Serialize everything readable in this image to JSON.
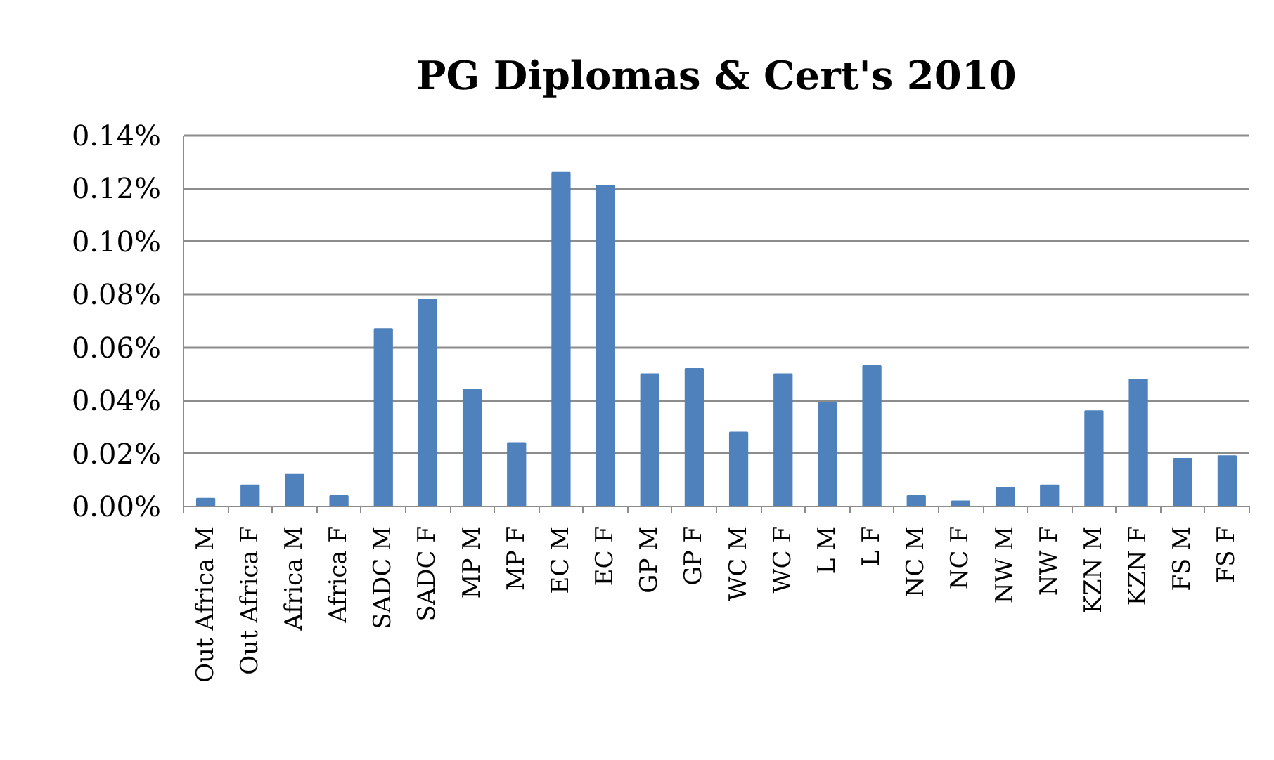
{
  "chart_data": {
    "type": "bar",
    "title": "PG Diplomas & Cert's 2010",
    "categories": [
      "Out Africa M",
      "Out Africa F",
      "Africa M",
      "Africa F",
      "SADC M",
      "SADC F",
      "MP M",
      "MP F",
      "EC M",
      "EC F",
      "GP M",
      "GP F",
      "WC M",
      "WC F",
      "L M",
      "L F",
      "NC M",
      "NC F",
      "NW M",
      "NW F",
      "KZN M",
      "KZN F",
      "FS M",
      "FS F"
    ],
    "values": [
      0.003,
      0.008,
      0.012,
      0.004,
      0.067,
      0.078,
      0.044,
      0.024,
      0.126,
      0.121,
      0.05,
      0.052,
      0.028,
      0.05,
      0.039,
      0.053,
      0.004,
      0.002,
      0.007,
      0.008,
      0.036,
      0.048,
      0.018,
      0.019
    ],
    "color": "#4f81bd",
    "ylim": [
      0,
      0.14
    ],
    "yticks": [
      {
        "value": 0,
        "label": "0.00%"
      },
      {
        "value": 0.02,
        "label": "0.02%"
      },
      {
        "value": 0.04,
        "label": "0.04%"
      },
      {
        "value": 0.06,
        "label": "0.06%"
      },
      {
        "value": 0.08,
        "label": "0.08%"
      },
      {
        "value": 0.1,
        "label": "0.10%"
      },
      {
        "value": 0.12,
        "label": "0.12%"
      },
      {
        "value": 0.14,
        "label": "0.14%"
      }
    ],
    "grid": "y"
  }
}
